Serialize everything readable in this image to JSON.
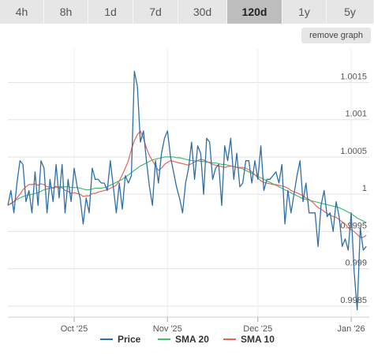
{
  "tabs": [
    {
      "label": "4h",
      "active": false
    },
    {
      "label": "8h",
      "active": false
    },
    {
      "label": "1d",
      "active": false
    },
    {
      "label": "7d",
      "active": false
    },
    {
      "label": "30d",
      "active": false
    },
    {
      "label": "120d",
      "active": true
    },
    {
      "label": "1y",
      "active": false
    },
    {
      "label": "5y",
      "active": false
    }
  ],
  "remove_graph_label": "remove graph",
  "chart_data": {
    "type": "line",
    "y_ticks": [
      "1.0015",
      "1.001",
      "1.0005",
      "1",
      "0.9995",
      "0.999",
      "0.9985"
    ],
    "y_tick_values": [
      1.0015,
      1.001,
      1.0005,
      1.0,
      0.9995,
      0.999,
      0.9985
    ],
    "ylim": [
      0.99835,
      1.00195
    ],
    "x_ticks": [
      "Oct '25",
      "Nov '25",
      "Dec '25",
      "Jan '26"
    ],
    "x_tick_positions": [
      22,
      53,
      83,
      114
    ],
    "xlim": [
      0,
      120
    ],
    "grid": true,
    "legend_position": "bottom",
    "series": [
      {
        "name": "Price",
        "color": "#2f6fa8",
        "values": [
          0.99985,
          1.00005,
          0.99975,
          1.00015,
          1.00045,
          1.0004,
          0.9999,
          1.00005,
          0.99975,
          1.0003,
          0.99985,
          1.00045,
          1.00035,
          0.99975,
          1.0002,
          0.9999,
          1.0004,
          0.99995,
          1.0004,
          0.99975,
          1.0002,
          0.9999,
          1.00035,
          1.0001,
          0.99995,
          0.9996,
          0.99995,
          0.99975,
          1.00035,
          1.0002,
          1.0002,
          1.00015,
          1.00015,
          1.00005,
          1.00045,
          1.0001,
          0.99975,
          1.00015,
          0.9998,
          1.00025,
          1.00015,
          1.00025,
          1.00165,
          1.00145,
          1.0007,
          1.00085,
          1.00045,
          1.0001,
          0.99985,
          1.00045,
          1.00015,
          1.00055,
          1.00075,
          1.00085,
          1.0005,
          1.0003,
          1.0001,
          0.99995,
          0.99975,
          1.00015,
          1.00035,
          1.0007,
          1.0002,
          1.00065,
          1.00055,
          1.0,
          1.00075,
          1.0007,
          1.0002,
          1.00035,
          1.0004,
          0.99985,
          1.00065,
          1.00045,
          1.00075,
          1.0002,
          1.00055,
          1.0001,
          1.00015,
          1.00045,
          1.00045,
          1.00015,
          1.00045,
          1.0002,
          1.00065,
          1.00005,
          1.0002,
          1.0002,
          1.00025,
          1.0003,
          1.00015,
          1.0004,
          0.9996,
          1.00005,
          0.99975,
          1.0,
          1.00025,
          1.00045,
          0.9999,
          1.00015,
          0.99975,
          0.99975,
          0.99975,
          0.9993,
          0.99985,
          1.00005,
          0.9997,
          0.99975,
          0.9995,
          0.9999,
          0.9997,
          0.9993,
          0.9994,
          0.99925,
          0.99975,
          0.99895,
          0.99845,
          0.99955,
          0.99925,
          0.9993
        ]
      },
      {
        "name": "SMA 20",
        "color": "#3fbf6f",
        "values": [
          0.99985,
          0.99988,
          0.9999,
          0.99993,
          0.99995,
          0.99997,
          0.99998,
          0.99999,
          1.0,
          1.00001,
          1.00002,
          1.00004,
          1.00006,
          1.00007,
          1.00008,
          1.00009,
          1.00009,
          1.0001,
          1.0001,
          1.0001,
          1.0001,
          1.00009,
          1.00009,
          1.00009,
          1.00008,
          1.00007,
          1.00006,
          1.00006,
          1.00007,
          1.00008,
          1.00008,
          1.00008,
          1.00009,
          1.0001,
          1.00012,
          1.00014,
          1.00016,
          1.00018,
          1.0002,
          1.00023,
          1.00026,
          1.00029,
          1.00032,
          1.00035,
          1.00038,
          1.0004,
          1.00042,
          1.00044,
          1.00046,
          1.00047,
          1.00048,
          1.00049,
          1.0005,
          1.0005,
          1.0005,
          1.0005,
          1.00049,
          1.00049,
          1.00048,
          1.00047,
          1.00046,
          1.00045,
          1.00045,
          1.00045,
          1.00044,
          1.00044,
          1.00043,
          1.00043,
          1.00042,
          1.00042,
          1.00041,
          1.0004,
          1.0004,
          1.00039,
          1.00038,
          1.00037,
          1.00036,
          1.00035,
          1.00034,
          1.00032,
          1.0003,
          1.00028,
          1.00026,
          1.00024,
          1.00022,
          1.0002,
          1.00018,
          1.00016,
          1.00014,
          1.00012,
          1.0001,
          1.00008,
          1.00006,
          1.00004,
          1.00002,
          1.0,
          0.99998,
          0.99996,
          0.99994,
          0.99993,
          0.99992,
          0.99991,
          0.9999,
          0.99989,
          0.99988,
          0.99987,
          0.99986,
          0.99985,
          0.99984,
          0.99983,
          0.99982,
          0.9998,
          0.99978,
          0.99976,
          0.99974,
          0.99971,
          0.99968,
          0.99966,
          0.99964,
          0.99962
        ]
      },
      {
        "name": "SMA 10",
        "color": "#e8645a",
        "values": [
          0.99985,
          0.99987,
          0.9999,
          0.99995,
          1.0,
          1.00006,
          1.0001,
          1.00013,
          1.00013,
          1.00014,
          1.00012,
          1.00014,
          1.00013,
          1.0001,
          1.0001,
          1.00008,
          1.00011,
          1.00008,
          1.00009,
          1.00005,
          1.00004,
          1.00001,
          1.00002,
          1.00001,
          1.0,
          0.99997,
          0.99998,
          0.99998,
          1.00001,
          1.00001,
          1.00003,
          1.00004,
          1.00005,
          1.00006,
          1.00008,
          1.0001,
          1.00012,
          1.00018,
          1.00026,
          1.00035,
          1.00045,
          1.0006,
          1.00072,
          1.0008,
          1.00085,
          1.00075,
          1.00062,
          1.00052,
          1.00045,
          1.00038,
          1.00032,
          1.00035,
          1.0004,
          1.00043,
          1.00045,
          1.00044,
          1.00043,
          1.00042,
          1.00041,
          1.0004,
          1.00039,
          1.00041,
          1.00043,
          1.00045,
          1.00047,
          1.00046,
          1.00044,
          1.00042,
          1.0004,
          1.00039,
          1.00038,
          1.00037,
          1.00036,
          1.00037,
          1.00038,
          1.00037,
          1.00036,
          1.00036,
          1.00036,
          1.00035,
          1.00033,
          1.0003,
          1.00026,
          1.00022,
          1.00018,
          1.00016,
          1.00015,
          1.00014,
          1.00013,
          1.00013,
          1.00012,
          1.00011,
          1.0001,
          1.00008,
          1.00005,
          1.00003,
          1.00002,
          1.0,
          0.99998,
          0.99995,
          0.99993,
          0.9999,
          0.99986,
          0.99982,
          0.9998,
          0.99977,
          0.99974,
          0.99972,
          0.9997,
          0.99969,
          0.99966,
          0.99963,
          0.9996,
          0.99955,
          0.99952,
          0.9995,
          0.99946,
          0.99942,
          0.99942,
          0.99945
        ]
      }
    ]
  }
}
